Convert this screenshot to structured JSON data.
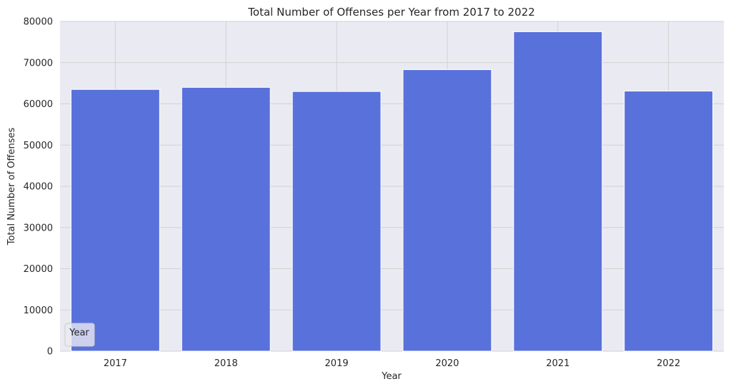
{
  "chart_data": {
    "type": "bar",
    "title": "Total Number of Offenses per Year from 2017 to 2022",
    "xlabel": "Year",
    "ylabel": "Total Number of Offenses",
    "categories": [
      "2017",
      "2018",
      "2019",
      "2020",
      "2021",
      "2022"
    ],
    "values": [
      63500,
      64000,
      63000,
      68300,
      77500,
      63100
    ],
    "ylim": [
      0,
      80000
    ],
    "yticks": [
      "0",
      "10000",
      "20000",
      "30000",
      "40000",
      "50000",
      "60000",
      "70000",
      "80000"
    ],
    "grid": true,
    "legend": {
      "title": "Year",
      "placement": "lower-left"
    },
    "colors": {
      "bar": "#5971db",
      "plot_background": "#eaeaf2",
      "grid": "#d2d2d2"
    }
  }
}
